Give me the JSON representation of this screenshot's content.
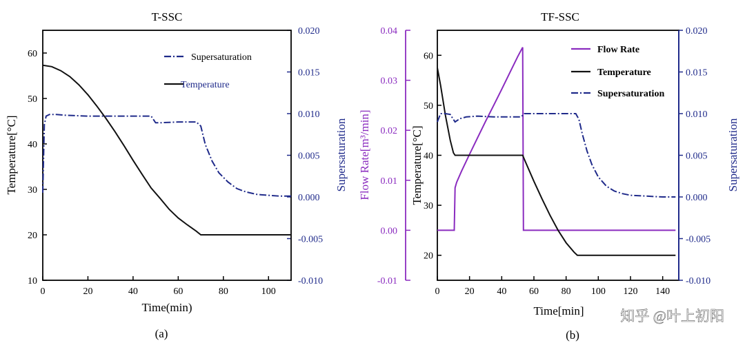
{
  "colors": {
    "temperature": "#111111",
    "supersaturation": "#1f2a8a",
    "flow_rate": "#8a2bbf",
    "axis_black": "#000000",
    "axis_navy": "#1f2a8a",
    "axis_purple": "#8a2bbf",
    "watermark": "#ffffff"
  },
  "watermark": "知乎 @叶上初阳",
  "chart_data": [
    {
      "id": "a",
      "type": "line",
      "title": "T-SSC",
      "panel_label": "(a)",
      "xlabel": "Time(min)",
      "xlim": [
        0,
        110
      ],
      "xticks": [
        0,
        20,
        40,
        60,
        80,
        100
      ],
      "xtick_labels": [
        "0",
        "20",
        "40",
        "60",
        "80",
        "100"
      ],
      "left_axis": {
        "label": "Temperature[°C]",
        "lim": [
          10,
          65
        ],
        "ticks": [
          10,
          20,
          30,
          40,
          50,
          60
        ],
        "tick_labels": [
          "10",
          "20",
          "30",
          "40",
          "50",
          "60"
        ]
      },
      "right_axis": {
        "label": "Supersaturation",
        "lim": [
          -0.01,
          0.02
        ],
        "ticks": [
          -0.01,
          -0.005,
          0.0,
          0.005,
          0.01,
          0.015,
          0.02
        ],
        "tick_labels": [
          "-0.010",
          "-0.005",
          "0.000",
          "0.005",
          "0.010",
          "0.015",
          "0.020"
        ]
      },
      "legend": {
        "position": "top-right",
        "entries": [
          {
            "series": "Supersaturation",
            "label": "Supersaturation"
          },
          {
            "series": "Temperature",
            "label": "Temperature"
          }
        ]
      },
      "series": [
        {
          "name": "Temperature",
          "axis": "left",
          "style": "solid",
          "color_key": "temperature",
          "x": [
            0,
            4,
            8,
            12,
            16,
            20,
            24,
            28,
            32,
            36,
            40,
            44,
            48,
            52,
            56,
            60,
            64,
            68,
            70,
            110
          ],
          "y": [
            57.3,
            57.0,
            56.1,
            54.8,
            53.0,
            50.8,
            48.3,
            45.6,
            42.7,
            39.6,
            36.4,
            33.3,
            30.3,
            28.0,
            25.6,
            23.7,
            22.2,
            20.8,
            20.0,
            20.0
          ]
        },
        {
          "name": "Supersaturation",
          "axis": "right",
          "style": "dashdot",
          "color_key": "supersaturation",
          "x": [
            0,
            0.7,
            1.5,
            3,
            6,
            10,
            20,
            30,
            40,
            48,
            50,
            52,
            60,
            68,
            70,
            72,
            75,
            78,
            82,
            86,
            90,
            95,
            100,
            105,
            110
          ],
          "y": [
            0.0005,
            0.0087,
            0.0097,
            0.0099,
            0.0099,
            0.0098,
            0.0097,
            0.0097,
            0.0097,
            0.0097,
            0.0089,
            0.0089,
            0.009,
            0.009,
            0.0085,
            0.0063,
            0.0043,
            0.0029,
            0.0018,
            0.001,
            0.0006,
            0.0003,
            0.0002,
            0.0001,
            0.0001
          ]
        }
      ]
    },
    {
      "id": "b",
      "type": "line",
      "title": "TF-SSC",
      "panel_label": "(b)",
      "xlabel": "Time[min]",
      "xlim": [
        0,
        150
      ],
      "xticks": [
        0,
        20,
        40,
        60,
        80,
        100,
        120,
        140
      ],
      "xtick_labels": [
        "0",
        "20",
        "40",
        "60",
        "80",
        "100",
        "120",
        "140"
      ],
      "far_left_axis": {
        "label": "Flow Rate[m³/min]",
        "lim": [
          -0.01,
          0.04
        ],
        "ticks": [
          -0.01,
          0.0,
          0.01,
          0.02,
          0.03,
          0.04
        ],
        "tick_labels": [
          "-0.01",
          "0.00",
          "0.01",
          "0.02",
          "0.03",
          "0.04"
        ]
      },
      "left_axis": {
        "label": "Temperature[°C]",
        "lim": [
          15,
          65
        ],
        "ticks": [
          20,
          30,
          40,
          50,
          60
        ],
        "tick_labels": [
          "20",
          "30",
          "40",
          "50",
          "60"
        ]
      },
      "right_axis": {
        "label": "Supersaturation",
        "lim": [
          -0.01,
          0.02
        ],
        "ticks": [
          -0.01,
          -0.005,
          0.0,
          0.005,
          0.01,
          0.015,
          0.02
        ],
        "tick_labels": [
          "-0.010",
          "-0.005",
          "0.000",
          "0.005",
          "0.010",
          "0.015",
          "0.020"
        ]
      },
      "legend": {
        "position": "top-right",
        "entries": [
          {
            "series": "Flow Rate",
            "label": "Flow Rate"
          },
          {
            "series": "Temperature",
            "label": "Temperature"
          },
          {
            "series": "Supersaturation",
            "label": "Supersaturation"
          }
        ]
      },
      "series": [
        {
          "name": "Flow Rate",
          "axis": "far_left",
          "style": "solid",
          "color_key": "flow_rate",
          "x": [
            0,
            10.5,
            11,
            12,
            15,
            20,
            25,
            30,
            35,
            40,
            45,
            50,
            53,
            53.5,
            148
          ],
          "y": [
            0.0,
            0.0,
            0.0085,
            0.0096,
            0.0118,
            0.0152,
            0.0185,
            0.0218,
            0.025,
            0.0282,
            0.0315,
            0.0348,
            0.0366,
            0.0,
            0.0
          ]
        },
        {
          "name": "Temperature",
          "axis": "left",
          "style": "solid",
          "color_key": "temperature",
          "x": [
            0,
            2,
            5,
            8,
            10,
            11,
            53,
            55,
            60,
            65,
            70,
            75,
            80,
            85,
            87,
            148
          ],
          "y": [
            57.5,
            54.0,
            48.0,
            43.0,
            40.5,
            40.0,
            40.0,
            38.5,
            34.8,
            31.3,
            28.0,
            25.0,
            22.5,
            20.6,
            20.0,
            20.0
          ]
        },
        {
          "name": "Supersaturation",
          "axis": "right",
          "style": "dashdot",
          "color_key": "supersaturation",
          "x": [
            0,
            2,
            5,
            8,
            10,
            11,
            14,
            18,
            25,
            35,
            45,
            52,
            53,
            54,
            60,
            70,
            80,
            86,
            88,
            90,
            93,
            96,
            100,
            105,
            110,
            115,
            120,
            130,
            140,
            148
          ],
          "y": [
            0.009,
            0.01,
            0.01,
            0.0099,
            0.0093,
            0.009,
            0.0094,
            0.0096,
            0.0097,
            0.0096,
            0.0096,
            0.0096,
            0.0098,
            0.01,
            0.01,
            0.01,
            0.01,
            0.01,
            0.0093,
            0.0076,
            0.0055,
            0.0039,
            0.0024,
            0.0013,
            0.0007,
            0.0004,
            0.0002,
            0.0001,
            0.0,
            0.0
          ]
        }
      ]
    }
  ]
}
